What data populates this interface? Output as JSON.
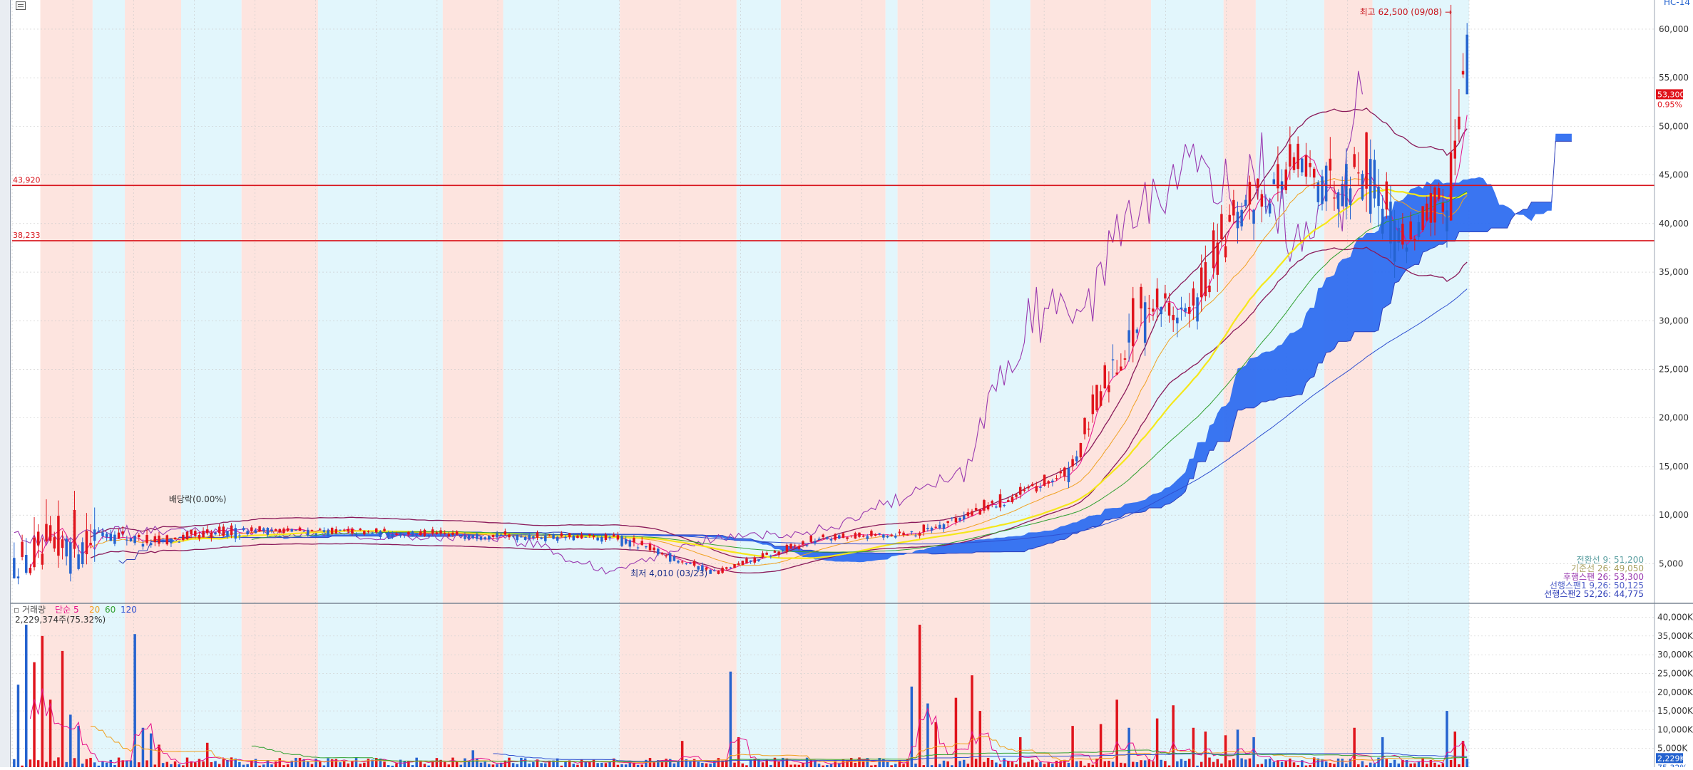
{
  "title": "",
  "top_right_label": "HC-14",
  "chart_data": [
    {
      "type": "candlestick",
      "title": "",
      "price_axis": {
        "ticks": [
          "60,000",
          "55,000",
          "50,000",
          "45,000",
          "40,000",
          "35,000",
          "30,000",
          "25,000",
          "20,000",
          "15,000",
          "10,000",
          "5,000"
        ],
        "values": [
          60000,
          55000,
          50000,
          45000,
          40000,
          35000,
          30000,
          25000,
          20000,
          15000,
          10000,
          5000
        ],
        "range": [
          1000,
          63000
        ]
      },
      "current_price": {
        "label": "53,300",
        "value": 53300,
        "change": "0.95%"
      },
      "horizontal_lines": [
        {
          "label": "43,920",
          "value": 43920,
          "color": "#d8141c"
        },
        {
          "label": "38,233",
          "value": 38233,
          "color": "#d8141c"
        }
      ],
      "annotations": {
        "high": {
          "label": "최고 62,500 (09/08)",
          "value": 62500
        },
        "low": {
          "label": "최저 4,010 (03/23)",
          "value": 4010
        },
        "dividend": {
          "label": "배당락(0.00%)"
        }
      },
      "ichimoku_legend": [
        {
          "label": "전환선 9: 51,200",
          "color": "#5a9ea0"
        },
        {
          "label": "기준선 26: 49,050",
          "color": "#a8a060"
        },
        {
          "label": "후행스팬 26: 53,300",
          "color": "#9a3ab0"
        },
        {
          "label": "선행스팬1 9,26: 50,125",
          "color": "#4f5fc8"
        },
        {
          "label": "선행스팬2 52,26: 44,775",
          "color": "#2f3fb8"
        }
      ],
      "candle_colors": {
        "up": "#e0141c",
        "down": "#2563cf"
      },
      "cloud_color": "#2f6ef0",
      "segments": [
        {
          "x0": 0,
          "x1": 21,
          "start": 4800,
          "end": 8300,
          "vol": 0.5
        },
        {
          "x0": 21,
          "x1": 34,
          "start": 8300,
          "end": 7200,
          "vol": 0.12
        },
        {
          "x0": 34,
          "x1": 58,
          "start": 7200,
          "end": 8500,
          "vol": 0.1
        },
        {
          "x0": 58,
          "x1": 110,
          "start": 8500,
          "end": 8000,
          "vol": 0.06
        },
        {
          "x0": 110,
          "x1": 150,
          "start": 8000,
          "end": 7600,
          "vol": 0.06
        },
        {
          "x0": 150,
          "x1": 174,
          "start": 7600,
          "end": 4100,
          "vol": 0.1
        },
        {
          "x0": 174,
          "x1": 200,
          "start": 4100,
          "end": 7600,
          "vol": 0.08
        },
        {
          "x0": 200,
          "x1": 224,
          "start": 7600,
          "end": 8200,
          "vol": 0.06
        },
        {
          "x0": 224,
          "x1": 246,
          "start": 8200,
          "end": 11500,
          "vol": 0.08
        },
        {
          "x0": 246,
          "x1": 262,
          "start": 11500,
          "end": 14500,
          "vol": 0.06
        },
        {
          "x0": 262,
          "x1": 272,
          "start": 14500,
          "end": 25000,
          "vol": 0.08
        },
        {
          "x0": 272,
          "x1": 282,
          "start": 25000,
          "end": 32000,
          "vol": 0.12
        },
        {
          "x0": 282,
          "x1": 292,
          "start": 32000,
          "end": 30500,
          "vol": 0.08
        },
        {
          "x0": 292,
          "x1": 302,
          "start": 30500,
          "end": 40000,
          "vol": 0.09
        },
        {
          "x0": 302,
          "x1": 318,
          "start": 40000,
          "end": 46000,
          "vol": 0.07
        },
        {
          "x0": 318,
          "x1": 326,
          "start": 46000,
          "end": 44000,
          "vol": 0.06
        },
        {
          "x0": 326,
          "x1": 336,
          "start": 44000,
          "end": 46000,
          "vol": 0.08
        },
        {
          "x0": 336,
          "x1": 344,
          "start": 46000,
          "end": 38000,
          "vol": 0.1
        },
        {
          "x0": 344,
          "x1": 356,
          "start": 38000,
          "end": 42500,
          "vol": 0.06
        },
        {
          "x0": 356,
          "x1": 360,
          "start": 42500,
          "end": 59000,
          "vol": 0.1
        },
        {
          "x0": 360,
          "x1": 362,
          "start": 59000,
          "end": 53300,
          "vol": 0.06
        }
      ],
      "candle_count": 362,
      "shading": [
        {
          "from": 0,
          "to": 7,
          "fill": "#ffffff"
        },
        {
          "from": 7,
          "to": 20,
          "fill": "#fde4df"
        },
        {
          "from": 20,
          "to": 28,
          "fill": "#e2f6fc"
        },
        {
          "from": 28,
          "to": 42,
          "fill": "#fde4df"
        },
        {
          "from": 42,
          "to": 57,
          "fill": "#e2f6fc"
        },
        {
          "from": 57,
          "to": 76,
          "fill": "#fde4df"
        },
        {
          "from": 76,
          "to": 107,
          "fill": "#e2f6fc"
        },
        {
          "from": 107,
          "to": 122,
          "fill": "#fde4df"
        },
        {
          "from": 122,
          "to": 151,
          "fill": "#e2f6fc"
        },
        {
          "from": 151,
          "to": 180,
          "fill": "#fde4df"
        },
        {
          "from": 180,
          "to": 191,
          "fill": "#e2f6fc"
        },
        {
          "from": 191,
          "to": 217,
          "fill": "#fde4df"
        },
        {
          "from": 217,
          "to": 220,
          "fill": "#e2f6fc"
        },
        {
          "from": 220,
          "to": 243,
          "fill": "#fde4df"
        },
        {
          "from": 243,
          "to": 253,
          "fill": "#e2f6fc"
        },
        {
          "from": 253,
          "to": 283,
          "fill": "#fde4df"
        },
        {
          "from": 283,
          "to": 301,
          "fill": "#e2f6fc"
        },
        {
          "from": 301,
          "to": 309,
          "fill": "#fde4df"
        },
        {
          "from": 309,
          "to": 326,
          "fill": "#e2f6fc"
        },
        {
          "from": 326,
          "to": 338,
          "fill": "#fde4df"
        },
        {
          "from": 338,
          "to": 362,
          "fill": "#e2f6fc"
        }
      ]
    },
    {
      "type": "bar",
      "title": "거래량",
      "legend": {
        "prefix": "거래량",
        "ma_label": "단순",
        "periods": [
          "5",
          "20",
          "60",
          "120"
        ],
        "colors": [
          "#e6108a",
          "#f0a020",
          "#30a030",
          "#3050d0"
        ]
      },
      "last_value_label": "2,229,374주(75.32%)",
      "axis_ticks": [
        "40,000K",
        "35,000K",
        "30,000K",
        "25,000K",
        "20,000K",
        "15,000K",
        "10,000K",
        "5,000K"
      ],
      "axis_values": [
        40000,
        35000,
        30000,
        25000,
        20000,
        15000,
        10000,
        5000
      ],
      "range_k": [
        0,
        42000
      ],
      "current_label": "2,229K",
      "current_pct": "75.32%",
      "spikes_k": [
        {
          "i": 1,
          "v": 22000
        },
        {
          "i": 3,
          "v": 38000
        },
        {
          "i": 5,
          "v": 28000
        },
        {
          "i": 7,
          "v": 35000
        },
        {
          "i": 9,
          "v": 18000
        },
        {
          "i": 12,
          "v": 31000
        },
        {
          "i": 14,
          "v": 14000
        },
        {
          "i": 16,
          "v": 11000
        },
        {
          "i": 30,
          "v": 35500
        },
        {
          "i": 32,
          "v": 10500
        },
        {
          "i": 34,
          "v": 9000
        },
        {
          "i": 36,
          "v": 6000
        },
        {
          "i": 48,
          "v": 6500
        },
        {
          "i": 114,
          "v": 4500
        },
        {
          "i": 166,
          "v": 7000
        },
        {
          "i": 178,
          "v": 25500
        },
        {
          "i": 180,
          "v": 8000
        },
        {
          "i": 223,
          "v": 21500
        },
        {
          "i": 225,
          "v": 38000
        },
        {
          "i": 227,
          "v": 17000
        },
        {
          "i": 229,
          "v": 12000
        },
        {
          "i": 234,
          "v": 18500
        },
        {
          "i": 238,
          "v": 24500
        },
        {
          "i": 240,
          "v": 15000
        },
        {
          "i": 250,
          "v": 8000
        },
        {
          "i": 263,
          "v": 11000
        },
        {
          "i": 270,
          "v": 11500
        },
        {
          "i": 274,
          "v": 18000
        },
        {
          "i": 277,
          "v": 10500
        },
        {
          "i": 284,
          "v": 13000
        },
        {
          "i": 288,
          "v": 16500
        },
        {
          "i": 293,
          "v": 10500
        },
        {
          "i": 296,
          "v": 9500
        },
        {
          "i": 301,
          "v": 8500
        },
        {
          "i": 304,
          "v": 10000
        },
        {
          "i": 308,
          "v": 8000
        },
        {
          "i": 333,
          "v": 10500
        },
        {
          "i": 340,
          "v": 8000
        },
        {
          "i": 356,
          "v": 15000
        },
        {
          "i": 358,
          "v": 9500
        },
        {
          "i": 360,
          "v": 7000
        },
        {
          "i": 361,
          "v": 2229
        }
      ]
    }
  ]
}
